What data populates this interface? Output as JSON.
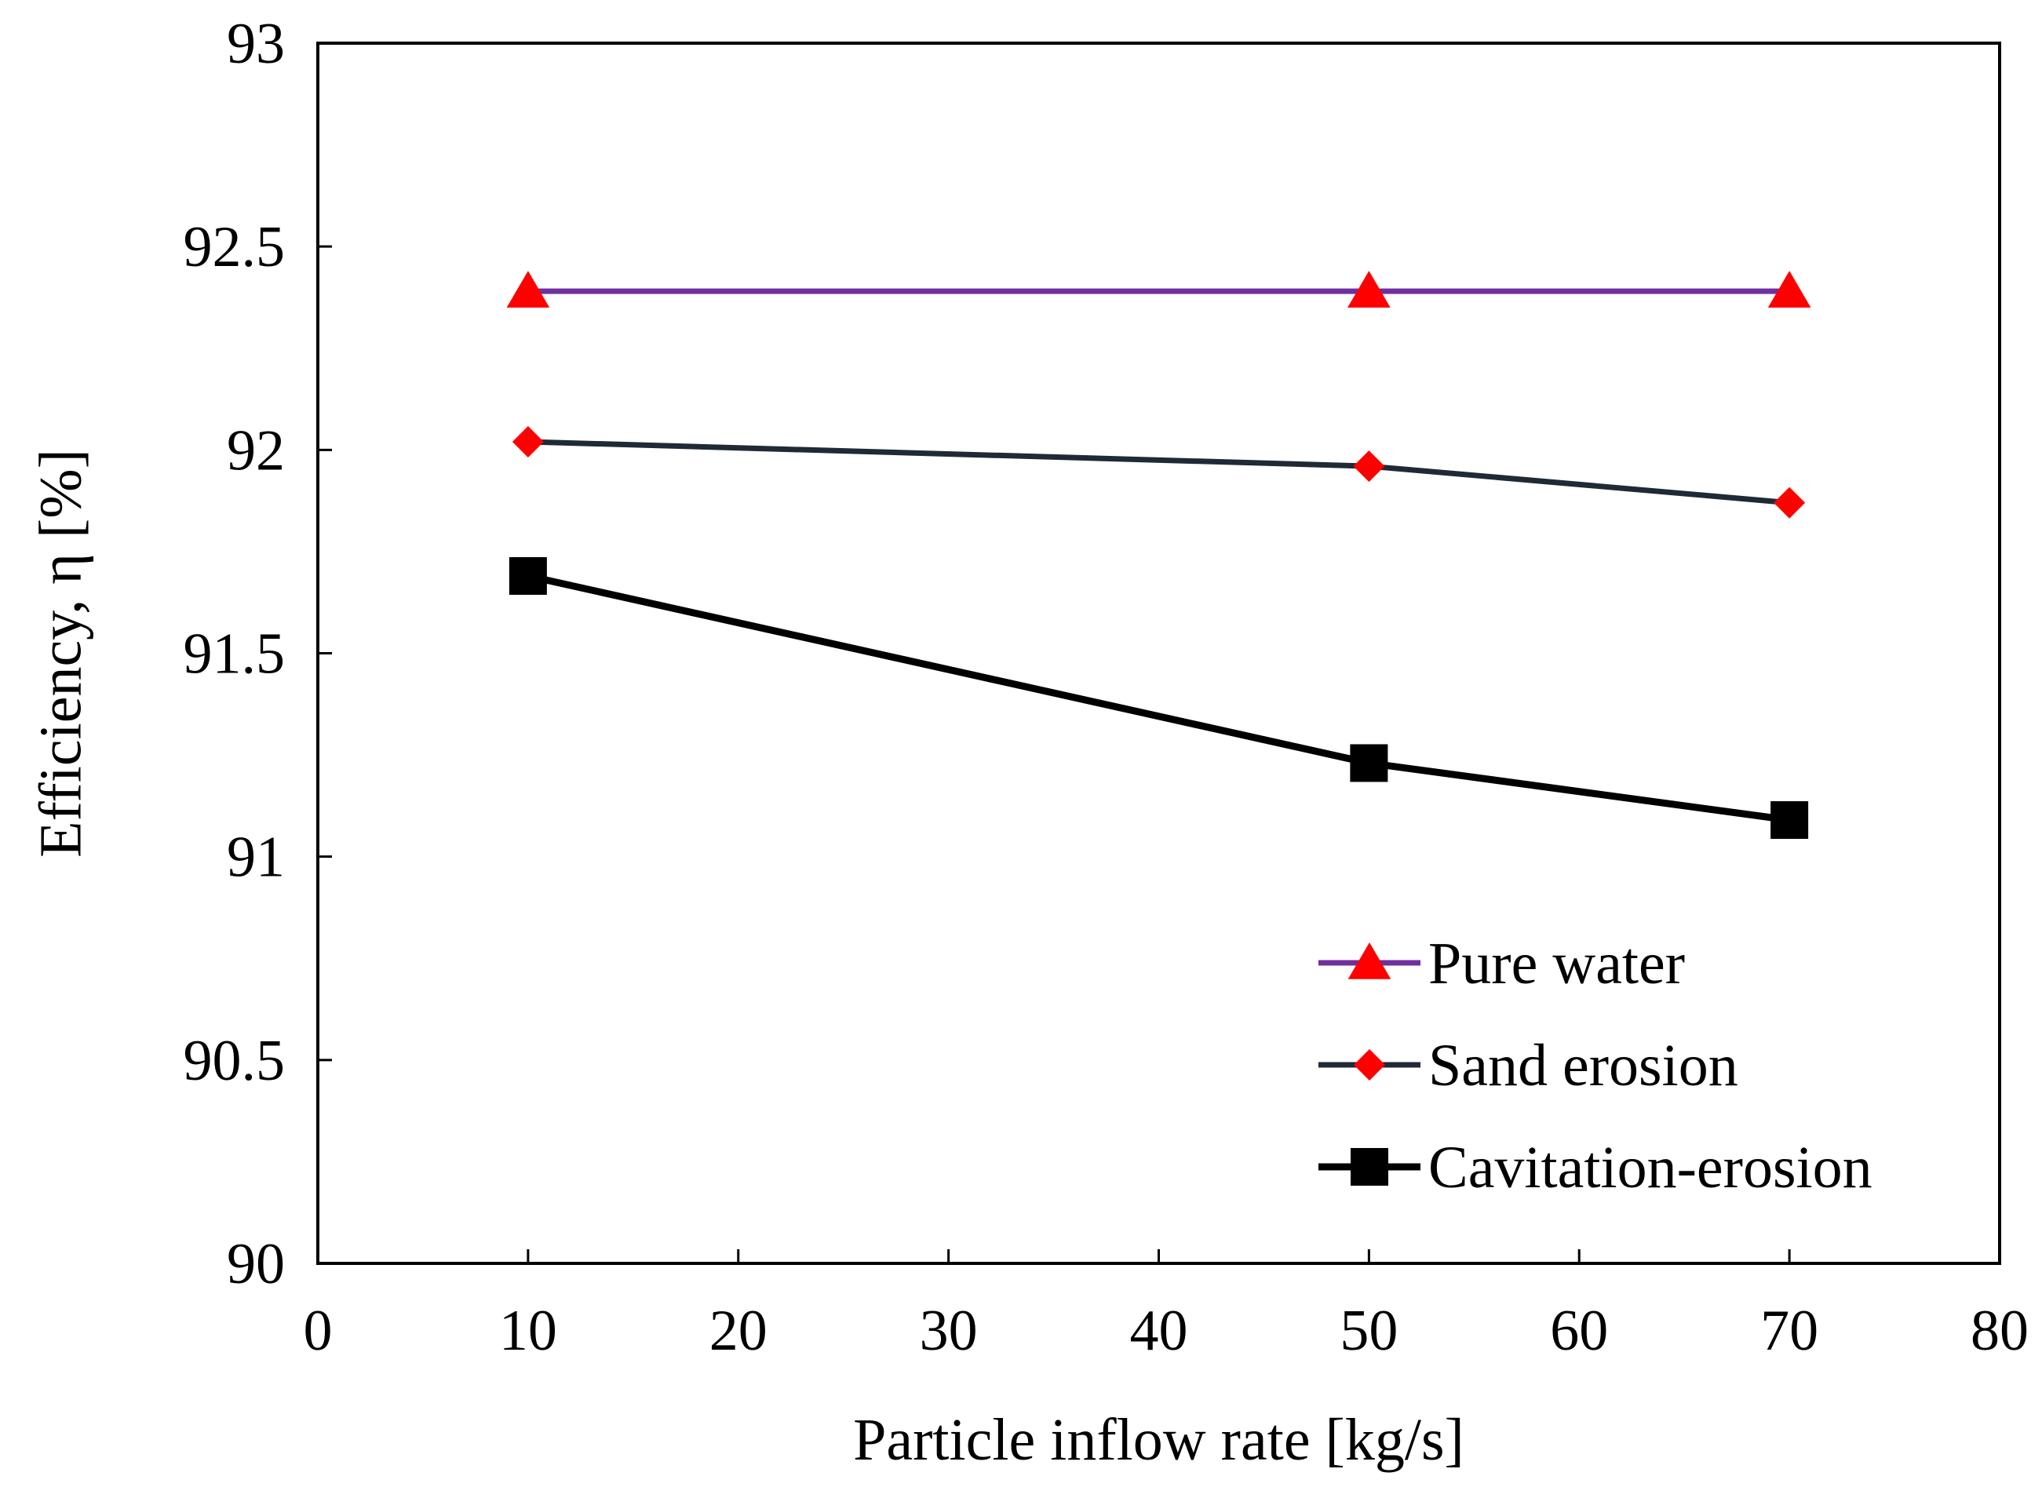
{
  "chart_data": {
    "type": "line",
    "title": "",
    "xlabel": "Particle inflow rate [kg/s]",
    "ylabel": "Efficiency, η [%]",
    "xlim": [
      0,
      80
    ],
    "ylim": [
      90,
      93
    ],
    "xticks": [
      0,
      10,
      20,
      30,
      40,
      50,
      60,
      70,
      80
    ],
    "yticks": [
      90,
      90.5,
      91,
      91.5,
      92,
      92.5,
      93
    ],
    "xtick_labels": [
      "0",
      "10",
      "20",
      "30",
      "40",
      "50",
      "60",
      "70",
      "80"
    ],
    "ytick_labels": [
      "90",
      "90.5",
      "91",
      "91.5",
      "92",
      "92.5",
      "93"
    ],
    "grid": false,
    "legend_position": "bottom-right",
    "x": [
      10,
      50,
      70
    ],
    "series": [
      {
        "name": "Pure water",
        "values": [
          92.39,
          92.39,
          92.39
        ],
        "line_color": "#7030a0",
        "marker": "triangle",
        "marker_color": "#ff0000"
      },
      {
        "name": "Sand erosion",
        "values": [
          92.02,
          91.96,
          91.87
        ],
        "line_color": "#1f2a36",
        "marker": "diamond",
        "marker_color": "#ff0000"
      },
      {
        "name": "Cavitation-erosion",
        "values": [
          91.69,
          91.23,
          91.09
        ],
        "line_color": "#000000",
        "marker": "square",
        "marker_color": "#000000"
      }
    ]
  }
}
